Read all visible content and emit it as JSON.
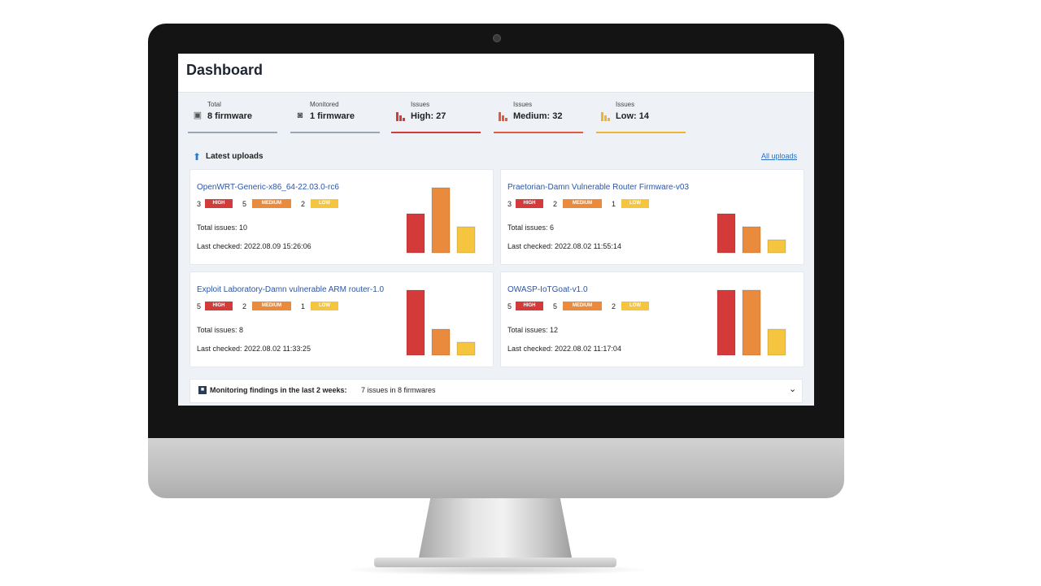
{
  "dashboard": {
    "title": "Dashboard"
  },
  "stats": [
    {
      "caption": "Total",
      "value": "8 firmware",
      "icon": "chip-icon",
      "color": "#9aa5b5"
    },
    {
      "caption": "Monitored",
      "value": "1 firmware",
      "icon": "monitor-icon",
      "color": "#9aa5b5"
    },
    {
      "caption": "Issues",
      "value": "High: 27",
      "icon": "bar-chart-icon",
      "color": "#d43a3a"
    },
    {
      "caption": "Issues",
      "value": "Medium: 32",
      "icon": "bar-chart-icon",
      "color": "#e15a3c"
    },
    {
      "caption": "Issues",
      "value": "Low: 14",
      "icon": "bar-chart-icon",
      "color": "#f0b530"
    }
  ],
  "uploads": {
    "title": "Latest uploads",
    "all_link": "All uploads",
    "icon": "upload-icon"
  },
  "severity_labels": {
    "high": "HIGH",
    "medium": "MEDIUM",
    "low": "LOW"
  },
  "colors": {
    "high": "#d43a3a",
    "medium": "#ea8a3c",
    "low": "#f5c540"
  },
  "cards": [
    {
      "name": "OpenWRT-Generic-x86_64-22.03.0-rc6",
      "high": 3,
      "medium": 5,
      "low": 2,
      "total": "Total issues: 10",
      "checked": "Last checked: 2022.08.09 15:26:06"
    },
    {
      "name": "Praetorian-Damn Vulnerable Router Firmware-v03",
      "high": 3,
      "medium": 2,
      "low": 1,
      "total": "Total issues: 6",
      "checked": "Last checked: 2022.08.02 11:55:14"
    },
    {
      "name": "Exploit Laboratory-Damn vulnerable ARM router-1.0",
      "high": 5,
      "medium": 2,
      "low": 1,
      "total": "Total issues: 8",
      "checked": "Last checked: 2022.08.02 11:33:25"
    },
    {
      "name": "OWASP-IoTGoat-v1.0",
      "high": 5,
      "medium": 5,
      "low": 2,
      "total": "Total issues: 12",
      "checked": "Last checked: 2022.08.02 11:17:04"
    }
  ],
  "monitoring": {
    "label": "Monitoring findings in the last 2 weeks:",
    "value": "7 issues in 8 firmwares",
    "icon": "chevron-down-icon"
  }
}
